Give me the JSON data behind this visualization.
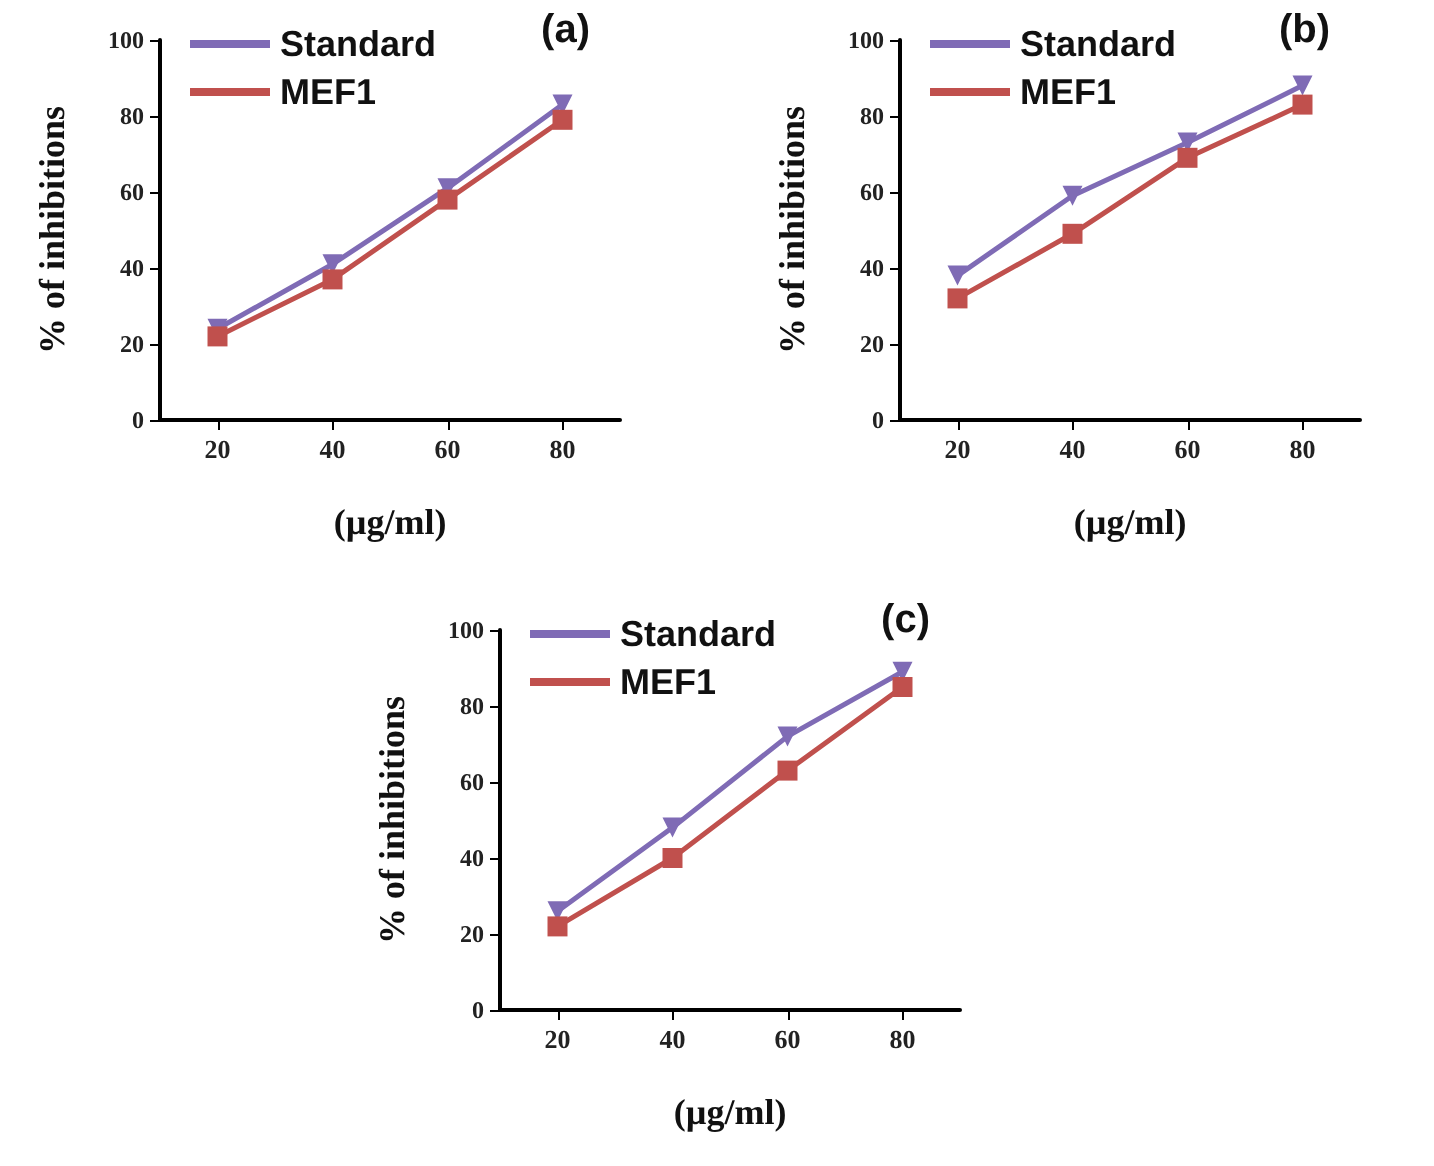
{
  "chart_data": [
    {
      "type": "line",
      "title": "(a)",
      "xlabel": "(µg/ml)",
      "ylabel": "% of inhibitions",
      "categories": [
        "20",
        "40",
        "60",
        "80"
      ],
      "ylim": [
        0,
        100
      ],
      "yticks": [
        0,
        20,
        40,
        60,
        80,
        100
      ],
      "grid": false,
      "legend": "top left",
      "series": [
        {
          "name": "Standard",
          "color": "#7f6bb5",
          "marker": "triangle",
          "values": [
            24,
            41,
            61,
            83
          ]
        },
        {
          "name": "MEF1",
          "color": "#c0504d",
          "marker": "square",
          "values": [
            22,
            37,
            58,
            79
          ]
        }
      ]
    },
    {
      "type": "line",
      "title": "(b)",
      "xlabel": "(µg/ml)",
      "ylabel": "% of inhibitions",
      "categories": [
        "20",
        "40",
        "60",
        "80"
      ],
      "ylim": [
        0,
        100
      ],
      "yticks": [
        0,
        20,
        40,
        60,
        80,
        100
      ],
      "grid": false,
      "legend": "top left",
      "series": [
        {
          "name": "Standard",
          "color": "#7f6bb5",
          "marker": "triangle",
          "values": [
            38,
            59,
            73,
            88
          ]
        },
        {
          "name": "MEF1",
          "color": "#c0504d",
          "marker": "square",
          "values": [
            32,
            49,
            69,
            83
          ]
        }
      ]
    },
    {
      "type": "line",
      "title": "(c)",
      "xlabel": "(µg/ml)",
      "ylabel": "% of inhibitions",
      "categories": [
        "20",
        "40",
        "60",
        "80"
      ],
      "ylim": [
        0,
        100
      ],
      "yticks": [
        0,
        20,
        40,
        60,
        80,
        100
      ],
      "grid": false,
      "legend": "top left",
      "series": [
        {
          "name": "Standard",
          "color": "#7f6bb5",
          "marker": "triangle",
          "values": [
            26,
            48,
            72,
            89
          ]
        },
        {
          "name": "MEF1",
          "color": "#c0504d",
          "marker": "square",
          "values": [
            22,
            40,
            63,
            85
          ]
        }
      ]
    }
  ]
}
